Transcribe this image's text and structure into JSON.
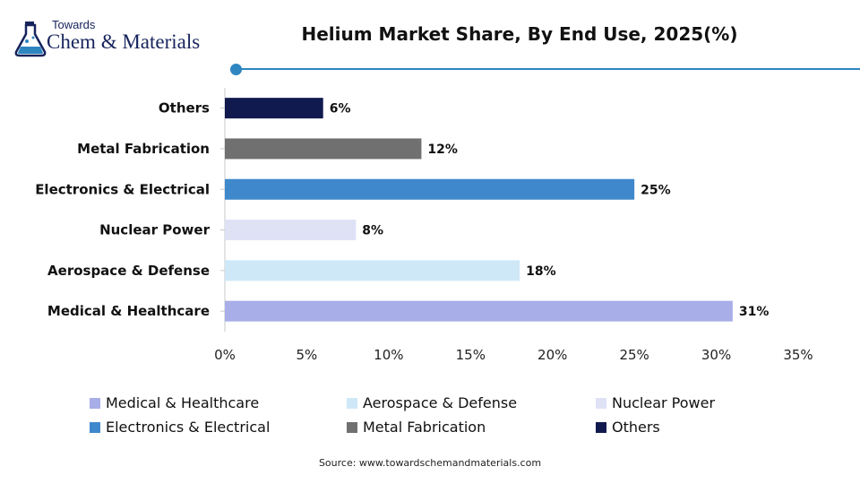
{
  "logo": {
    "small_text": "Towards",
    "big_text": "Chem & Materials"
  },
  "colors": {
    "brand_blue": "#2e86c1",
    "logo_navy": "#17245c"
  },
  "source": "Source:  www.towardschemandmaterials.com",
  "chart_data": {
    "type": "bar",
    "orientation": "horizontal",
    "title": "Helium Market Share, By End Use, 2025(%)",
    "xlabel": "",
    "ylabel": "",
    "xlim": [
      0,
      35
    ],
    "x_ticks": [
      "0%",
      "5%",
      "10%",
      "15%",
      "20%",
      "25%",
      "30%",
      "35%"
    ],
    "grid": false,
    "legend_position": "bottom",
    "categories": [
      "Others",
      "Metal Fabrication",
      "Electronics & Electrical",
      "Nuclear Power",
      "Aerospace & Defense",
      "Medical & Healthcare"
    ],
    "values": [
      6,
      12,
      25,
      8,
      18,
      31
    ],
    "value_labels": [
      "6%",
      "12%",
      "25%",
      "8%",
      "18%",
      "31%"
    ],
    "bar_colors": [
      "#111a4e",
      "#707070",
      "#3f88cc",
      "#dfe2f5",
      "#cfe8f8",
      "#a7aee8"
    ],
    "legend": [
      {
        "name": "Medical & Healthcare",
        "color": "#a7aee8"
      },
      {
        "name": "Aerospace & Defense",
        "color": "#cfe8f8"
      },
      {
        "name": "Nuclear Power",
        "color": "#dfe2f5"
      },
      {
        "name": "Electronics & Electrical",
        "color": "#3f88cc"
      },
      {
        "name": "Metal Fabrication",
        "color": "#707070"
      },
      {
        "name": "Others",
        "color": "#111a4e"
      }
    ]
  }
}
